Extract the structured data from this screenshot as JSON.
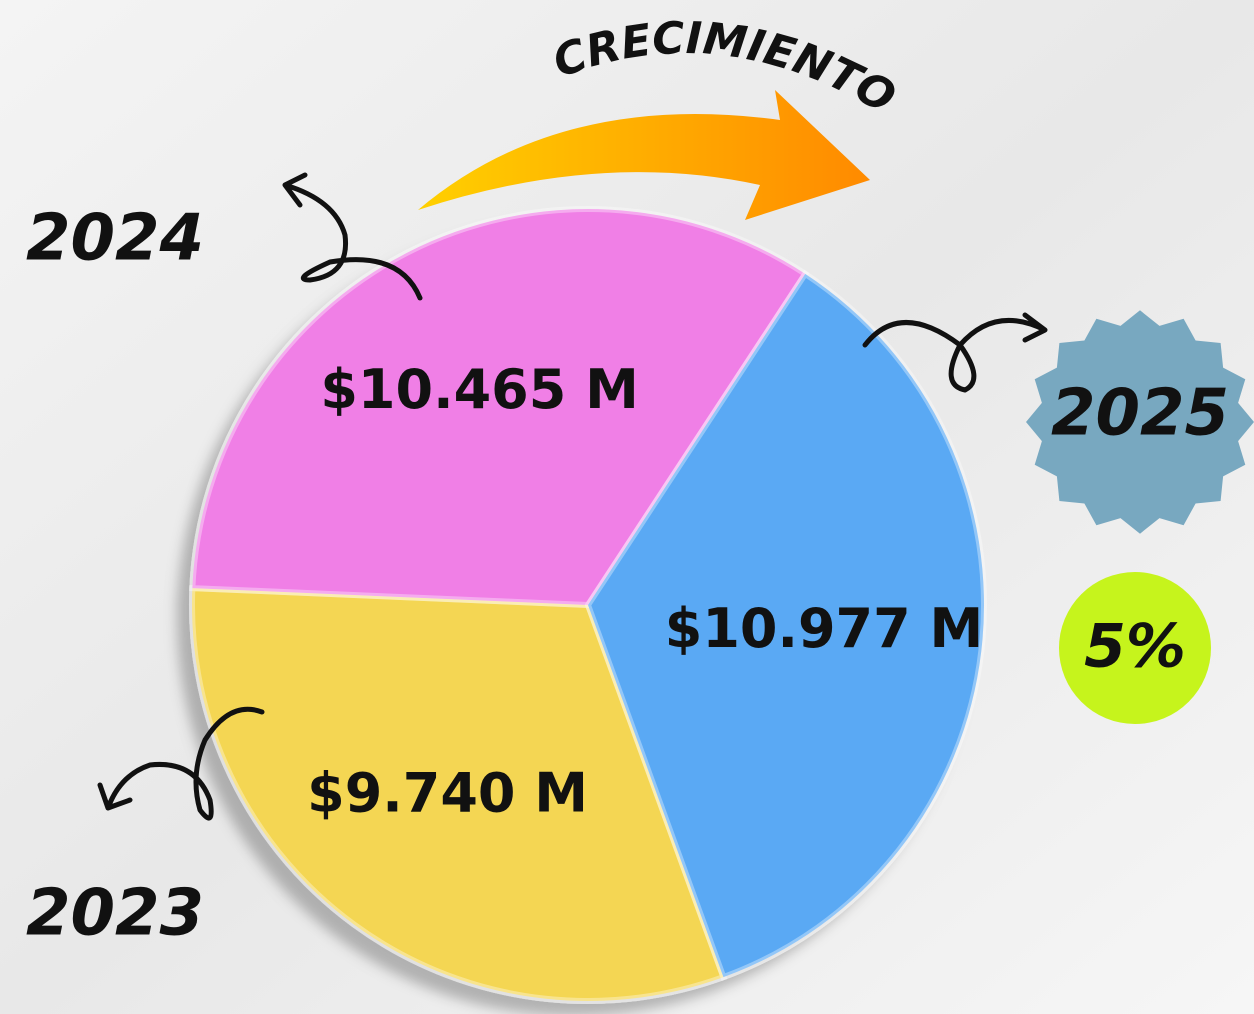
{
  "chart_data": {
    "type": "pie",
    "title": "CRECIMIENTO",
    "categories": [
      "2023",
      "2024",
      "2025"
    ],
    "values": [
      9.74,
      10.465,
      10.977
    ],
    "value_labels": [
      "$9.740 M",
      "$10.465 M",
      "$10.977 M"
    ],
    "colors": [
      "#f4d652",
      "#f07fe6",
      "#5aa9f4"
    ],
    "annotation": "5%"
  }
}
